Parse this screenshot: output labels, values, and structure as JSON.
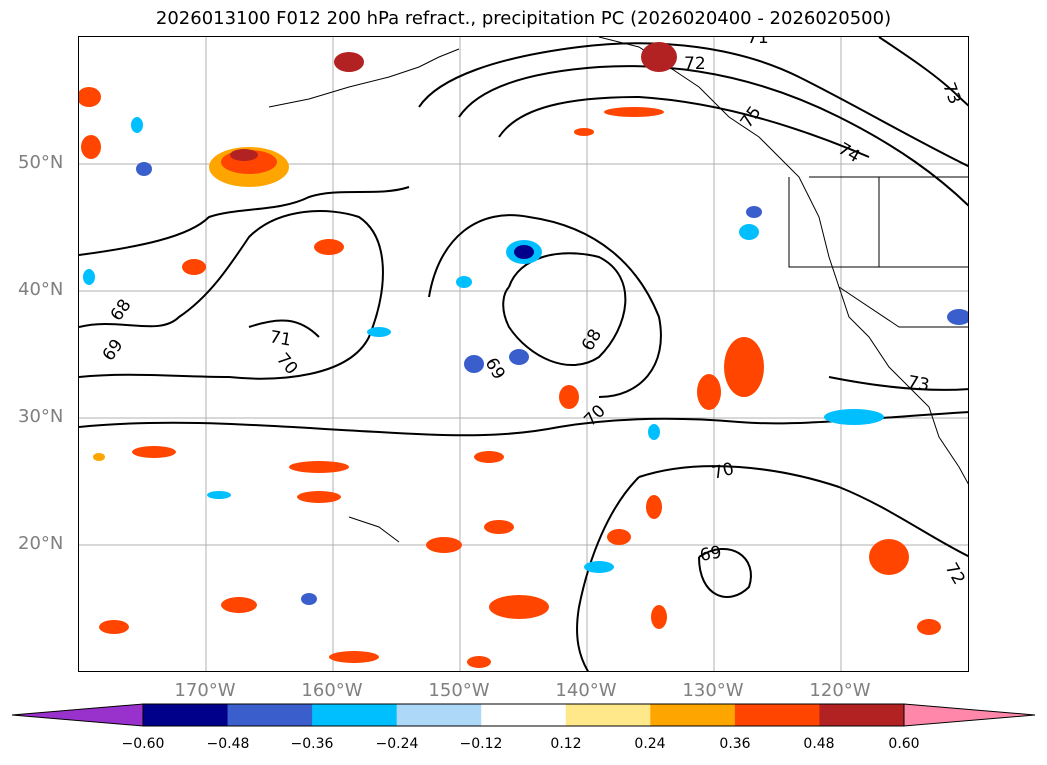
{
  "title": "2026013100 F012 200 hPa refract., precipitation PC (2026020400 - 2026020500)",
  "lat_labels": [
    "50°N",
    "40°N",
    "30°N",
    "20°N"
  ],
  "lon_labels": [
    "170°W",
    "160°W",
    "150°W",
    "140°W",
    "130°W",
    "120°W"
  ],
  "contour_labels": [
    "71",
    "72",
    "73",
    "75",
    "74",
    "68",
    "69",
    "71",
    "70",
    "69",
    "68",
    "70",
    "70",
    "69",
    "73",
    "72"
  ],
  "colorbar": {
    "ticks": [
      "−0.60",
      "−0.48",
      "−0.36",
      "−0.24",
      "−0.12",
      "0.12",
      "0.24",
      "0.36",
      "0.48",
      "0.60"
    ],
    "colors": [
      "#9932cc",
      "#00008b",
      "#3a5fcd",
      "#00bfff",
      "#add8f7",
      "#ffffff",
      "#ffe88a",
      "#ffa500",
      "#ff4500",
      "#b22222",
      "#ff88aa"
    ]
  },
  "chart_data": {
    "type": "map",
    "title": "2026013100 F012 200 hPa refract., precipitation PC (2026020400 - 2026020500)",
    "lon_range": [
      "180°W",
      "110°W"
    ],
    "lat_range": [
      "10°N",
      "60°N"
    ],
    "contour_levels": [
      68,
      69,
      70,
      71,
      72,
      73,
      74,
      75
    ],
    "shading_levels": [
      -0.6,
      -0.48,
      -0.36,
      -0.24,
      -0.12,
      0.12,
      0.24,
      0.36,
      0.48,
      0.6
    ],
    "grid": true
  }
}
